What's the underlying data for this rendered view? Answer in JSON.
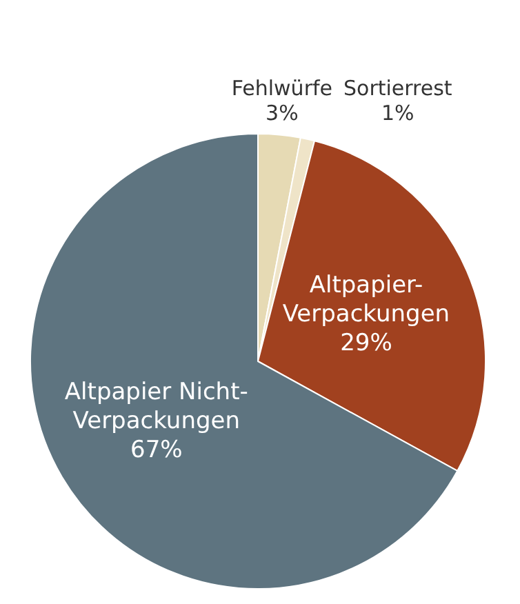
{
  "chart_data": {
    "type": "pie",
    "categories": [
      "Fehlwürfe",
      "Sortierrest",
      "Altpapier-Verpackungen",
      "Altpapier Nicht-Verpackungen"
    ],
    "values": [
      3,
      1,
      29,
      67
    ],
    "value_labels": [
      "3%",
      "1%",
      "29%",
      "67%"
    ],
    "colors": [
      "#e6dab4",
      "#efe4c8",
      "#a1411f",
      "#5e7480"
    ]
  }
}
